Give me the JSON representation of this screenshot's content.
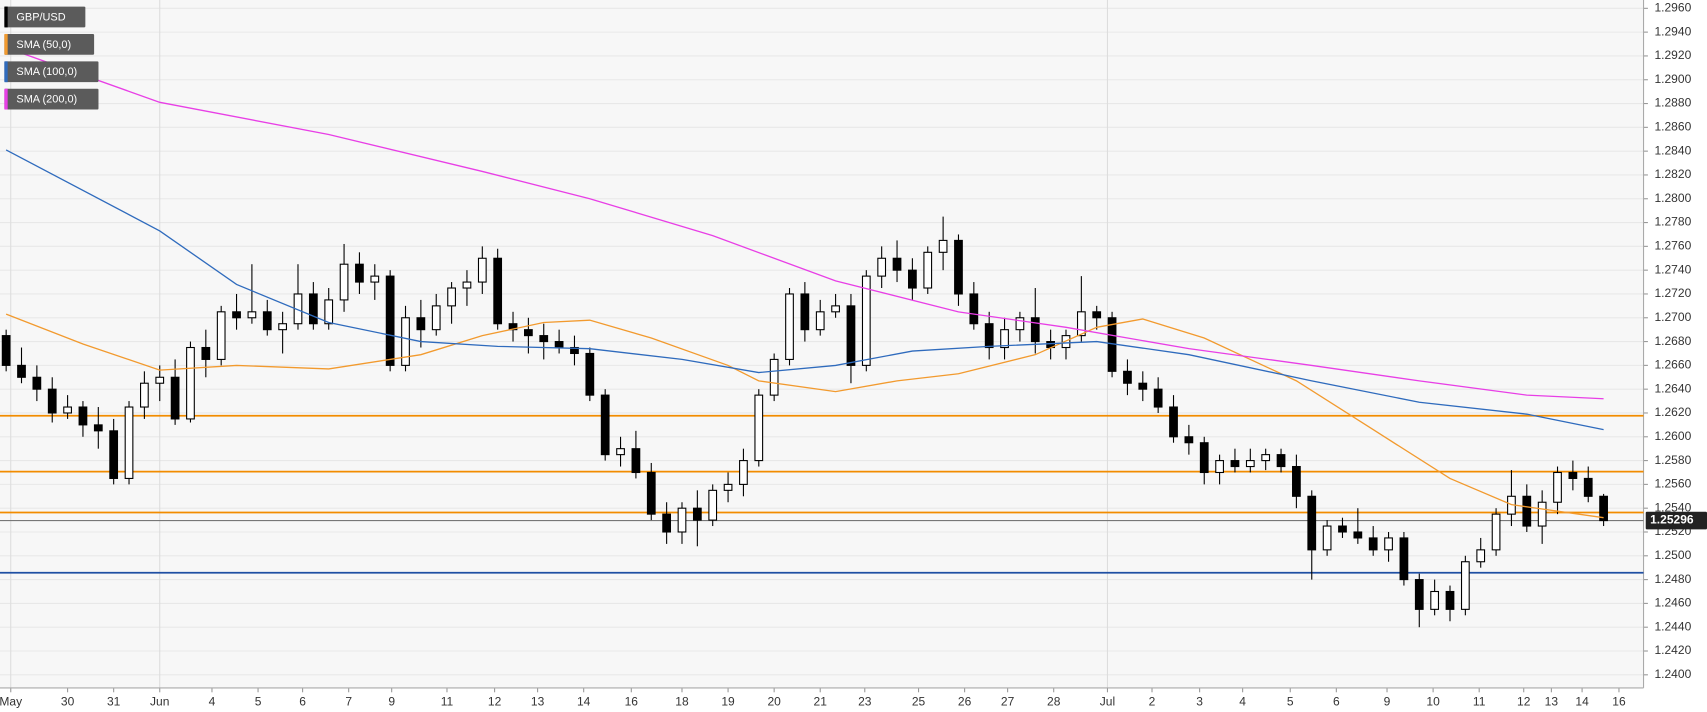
{
  "chart_data": {
    "type": "candlestick",
    "series": [
      {
        "name": "GBP/USD",
        "color": "#000000",
        "x": [
          0,
          1,
          2,
          3,
          4,
          5,
          6,
          7,
          8,
          9,
          10,
          11,
          12,
          13,
          14,
          15,
          16,
          17,
          18,
          19,
          20,
          21,
          22,
          23,
          24,
          25,
          26,
          27,
          28,
          29,
          30,
          31,
          32,
          33,
          34,
          35,
          36,
          37,
          38,
          39,
          40,
          41,
          42,
          43,
          44,
          45,
          46,
          47,
          48,
          49,
          50,
          51,
          52,
          53,
          54,
          55,
          56,
          57,
          58,
          59,
          60,
          61,
          62,
          63,
          64,
          65,
          66,
          67,
          68,
          69,
          70,
          71,
          72,
          73,
          74,
          75,
          76,
          77,
          78,
          79,
          80,
          81,
          82,
          83,
          84,
          85,
          86,
          87,
          88,
          89,
          90,
          91,
          92,
          93,
          94,
          95,
          96,
          97,
          98,
          99,
          100,
          101,
          102,
          103,
          104
        ],
        "open": [
          1.2685,
          1.266,
          1.265,
          1.264,
          1.262,
          1.2625,
          1.261,
          1.2605,
          1.2565,
          1.2625,
          1.2645,
          1.265,
          1.2615,
          1.2675,
          1.2665,
          1.2705,
          1.27,
          1.2705,
          1.269,
          1.2695,
          1.272,
          1.2695,
          1.2715,
          1.2745,
          1.273,
          1.2735,
          1.266,
          1.27,
          1.269,
          1.271,
          1.2725,
          1.273,
          1.275,
          1.2695,
          1.269,
          1.2685,
          1.268,
          1.2675,
          1.267,
          1.2635,
          1.2585,
          1.259,
          1.257,
          1.2535,
          1.252,
          1.254,
          1.253,
          1.2555,
          1.256,
          1.258,
          1.2635,
          1.2665,
          1.272,
          1.269,
          1.2705,
          1.271,
          1.266,
          1.2735,
          1.275,
          1.274,
          1.2725,
          1.2755,
          1.2765,
          1.272,
          1.2695,
          1.2675,
          1.269,
          1.27,
          1.268,
          1.2675,
          1.2685,
          1.2705,
          1.27,
          1.2655,
          1.2645,
          1.264,
          1.2625,
          1.26,
          1.2595,
          1.257,
          1.258,
          1.2575,
          1.258,
          1.2585,
          1.2575,
          1.255,
          1.2505,
          1.2525,
          1.252,
          1.2515,
          1.2505,
          1.2515,
          1.248,
          1.2455,
          1.247,
          1.2455,
          1.2495,
          1.2505,
          1.2535,
          1.255,
          1.2525,
          1.2545,
          1.257,
          1.2565,
          1.255
        ],
        "high": [
          1.269,
          1.2675,
          1.266,
          1.265,
          1.2635,
          1.263,
          1.2625,
          1.2615,
          1.263,
          1.2655,
          1.266,
          1.2665,
          1.268,
          1.269,
          1.271,
          1.272,
          1.2745,
          1.2715,
          1.2705,
          1.2745,
          1.273,
          1.2725,
          1.2762,
          1.2755,
          1.2745,
          1.274,
          1.271,
          1.2715,
          1.272,
          1.273,
          1.274,
          1.276,
          1.2758,
          1.2705,
          1.27,
          1.2695,
          1.269,
          1.2685,
          1.2675,
          1.264,
          1.26,
          1.2605,
          1.2578,
          1.2545,
          1.2545,
          1.2555,
          1.256,
          1.257,
          1.259,
          1.264,
          1.267,
          1.2725,
          1.273,
          1.2715,
          1.272,
          1.272,
          1.274,
          1.276,
          1.2765,
          1.275,
          1.276,
          1.2785,
          1.277,
          1.273,
          1.2705,
          1.27,
          1.2705,
          1.2725,
          1.269,
          1.269,
          1.2735,
          1.271,
          1.2705,
          1.2665,
          1.2655,
          1.265,
          1.2635,
          1.261,
          1.26,
          1.2585,
          1.259,
          1.259,
          1.259,
          1.259,
          1.2585,
          1.2555,
          1.253,
          1.2532,
          1.254,
          1.2525,
          1.252,
          1.252,
          1.2485,
          1.248,
          1.2475,
          1.25,
          1.2515,
          1.254,
          1.2572,
          1.256,
          1.2555,
          1.2575,
          1.258,
          1.2575,
          1.2552
        ],
        "low": [
          1.2655,
          1.2645,
          1.263,
          1.2612,
          1.2615,
          1.26,
          1.259,
          1.256,
          1.256,
          1.2615,
          1.263,
          1.261,
          1.2612,
          1.265,
          1.266,
          1.269,
          1.2695,
          1.2685,
          1.267,
          1.269,
          1.269,
          1.269,
          1.2705,
          1.272,
          1.2715,
          1.2655,
          1.2655,
          1.2675,
          1.2685,
          1.2695,
          1.271,
          1.272,
          1.269,
          1.268,
          1.267,
          1.2665,
          1.267,
          1.266,
          1.263,
          1.258,
          1.2575,
          1.2565,
          1.253,
          1.251,
          1.251,
          1.2508,
          1.2525,
          1.2545,
          1.255,
          1.2575,
          1.263,
          1.266,
          1.268,
          1.2685,
          1.27,
          1.2645,
          1.2655,
          1.2725,
          1.273,
          1.2715,
          1.272,
          1.274,
          1.271,
          1.269,
          1.2665,
          1.2665,
          1.268,
          1.267,
          1.2665,
          1.2665,
          1.268,
          1.269,
          1.265,
          1.2635,
          1.263,
          1.262,
          1.2595,
          1.2585,
          1.256,
          1.256,
          1.257,
          1.257,
          1.2572,
          1.257,
          1.254,
          1.248,
          1.25,
          1.2515,
          1.251,
          1.25,
          1.2495,
          1.2475,
          1.244,
          1.245,
          1.2445,
          1.245,
          1.249,
          1.25,
          1.2525,
          1.252,
          1.251,
          1.2535,
          1.2555,
          1.2545,
          1.2525
        ],
        "close": [
          1.266,
          1.265,
          1.264,
          1.262,
          1.2625,
          1.261,
          1.2605,
          1.2565,
          1.2625,
          1.2645,
          1.265,
          1.2615,
          1.2675,
          1.2665,
          1.2705,
          1.27,
          1.2705,
          1.269,
          1.2695,
          1.272,
          1.2695,
          1.2715,
          1.2745,
          1.273,
          1.2735,
          1.266,
          1.27,
          1.269,
          1.271,
          1.2725,
          1.273,
          1.275,
          1.2695,
          1.269,
          1.2685,
          1.268,
          1.2675,
          1.267,
          1.2635,
          1.2585,
          1.259,
          1.257,
          1.2535,
          1.252,
          1.254,
          1.253,
          1.2555,
          1.256,
          1.258,
          1.2635,
          1.2665,
          1.272,
          1.269,
          1.2705,
          1.271,
          1.266,
          1.2735,
          1.275,
          1.274,
          1.2725,
          1.2755,
          1.2765,
          1.272,
          1.2695,
          1.2675,
          1.269,
          1.27,
          1.268,
          1.2675,
          1.2685,
          1.2705,
          1.27,
          1.2655,
          1.2645,
          1.264,
          1.2625,
          1.26,
          1.2595,
          1.257,
          1.258,
          1.2575,
          1.258,
          1.2585,
          1.2575,
          1.255,
          1.2505,
          1.2525,
          1.252,
          1.2515,
          1.2505,
          1.2515,
          1.248,
          1.2455,
          1.247,
          1.2455,
          1.2495,
          1.2505,
          1.2535,
          1.255,
          1.2525,
          1.2545,
          1.257,
          1.2565,
          1.255,
          1.25296
        ]
      }
    ],
    "overlays": [
      {
        "name": "SMA (50,0)",
        "color": "#f29a2e",
        "x": [
          0,
          5,
          10,
          15,
          21,
          27,
          31,
          35,
          38,
          42,
          47,
          49,
          54,
          58,
          62,
          67,
          71,
          74,
          78,
          84,
          89,
          94,
          98,
          104
        ],
        "values": [
          1.2703,
          1.2678,
          1.2656,
          1.266,
          1.2657,
          1.2669,
          1.2685,
          1.2696,
          1.2698,
          1.2683,
          1.266,
          1.2647,
          1.2638,
          1.2647,
          1.2653,
          1.2669,
          1.2692,
          1.2699,
          1.2683,
          1.2647,
          1.2606,
          1.2565,
          1.2543,
          1.2532
        ]
      },
      {
        "name": "SMA (100,0)",
        "color": "#2f6bbd",
        "x": [
          0,
          10,
          15,
          21,
          27,
          32,
          38,
          44,
          49,
          54,
          59,
          64,
          71,
          77,
          85,
          92,
          99,
          104
        ],
        "values": [
          1.2841,
          1.2773,
          1.2728,
          1.2696,
          1.268,
          1.2676,
          1.2674,
          1.2665,
          1.2654,
          1.266,
          1.2672,
          1.2676,
          1.268,
          1.2669,
          1.2647,
          1.2629,
          1.2619,
          1.2606
        ]
      },
      {
        "name": "SMA (200,0)",
        "color": "#e83fe6",
        "x": [
          0,
          10,
          21,
          31,
          38,
          46,
          54,
          62,
          69,
          77,
          85,
          92,
          99,
          104
        ],
        "values": [
          1.2927,
          1.2881,
          1.2854,
          1.2823,
          1.28,
          1.2769,
          1.2731,
          1.2705,
          1.2692,
          1.2674,
          1.266,
          1.2647,
          1.2635,
          1.2632
        ]
      }
    ],
    "hlines": [
      {
        "value": 1.26177,
        "color": "#f28c00"
      },
      {
        "value": 1.25707,
        "color": "#f28c00"
      },
      {
        "value": 1.25364,
        "color": "#f28c00"
      },
      {
        "value": 1.24858,
        "color": "#1f4fa3"
      }
    ],
    "last_price": 1.25296,
    "xlim": [
      -0.4,
      106.6
    ],
    "ylim": [
      1.2389,
      1.2967
    ],
    "xticks": [
      {
        "value": 0.3,
        "label": "May"
      },
      {
        "value": 4.0,
        "label": "30"
      },
      {
        "value": 7.0,
        "label": "31"
      },
      {
        "value": 10.0,
        "label": "Jun"
      },
      {
        "value": 13.4,
        "label": "4"
      },
      {
        "value": 16.4,
        "label": "5"
      },
      {
        "value": 19.3,
        "label": "6"
      },
      {
        "value": 22.3,
        "label": "7"
      },
      {
        "value": 25.1,
        "label": "9"
      },
      {
        "value": 28.7,
        "label": "11"
      },
      {
        "value": 31.8,
        "label": "12"
      },
      {
        "value": 34.6,
        "label": "13"
      },
      {
        "value": 37.6,
        "label": "14"
      },
      {
        "value": 40.7,
        "label": "16"
      },
      {
        "value": 44.0,
        "label": "18"
      },
      {
        "value": 47.0,
        "label": "19"
      },
      {
        "value": 50.0,
        "label": "20"
      },
      {
        "value": 53.0,
        "label": "21"
      },
      {
        "value": 55.9,
        "label": "23"
      },
      {
        "value": 59.4,
        "label": "25"
      },
      {
        "value": 62.4,
        "label": "26"
      },
      {
        "value": 65.2,
        "label": "27"
      },
      {
        "value": 68.2,
        "label": "28"
      },
      {
        "value": 71.7,
        "label": "Jul"
      },
      {
        "value": 74.6,
        "label": "2"
      },
      {
        "value": 77.7,
        "label": "3"
      },
      {
        "value": 80.5,
        "label": "4"
      },
      {
        "value": 83.6,
        "label": "5"
      },
      {
        "value": 86.6,
        "label": "6"
      },
      {
        "value": 89.9,
        "label": "9"
      },
      {
        "value": 92.9,
        "label": "10"
      },
      {
        "value": 95.9,
        "label": "11"
      },
      {
        "value": 98.8,
        "label": "12"
      },
      {
        "value": 100.6,
        "label": "13"
      },
      {
        "value": 102.6,
        "label": "14"
      },
      {
        "value": 105.0,
        "label": "16"
      }
    ],
    "yticks": [
      {
        "value": 1.24,
        "label": "1.2400"
      },
      {
        "value": 1.242,
        "label": "1.2420"
      },
      {
        "value": 1.244,
        "label": "1.2440"
      },
      {
        "value": 1.246,
        "label": "1.2460"
      },
      {
        "value": 1.248,
        "label": "1.2480"
      },
      {
        "value": 1.25,
        "label": "1.2500"
      },
      {
        "value": 1.252,
        "label": "1.2520"
      },
      {
        "value": 1.254,
        "label": "1.2540"
      },
      {
        "value": 1.256,
        "label": "1.2560"
      },
      {
        "value": 1.258,
        "label": "1.2580"
      },
      {
        "value": 1.26,
        "label": "1.2600"
      },
      {
        "value": 1.262,
        "label": "1.2620"
      },
      {
        "value": 1.264,
        "label": "1.2640"
      },
      {
        "value": 1.266,
        "label": "1.2660"
      },
      {
        "value": 1.268,
        "label": "1.2680"
      },
      {
        "value": 1.27,
        "label": "1.2700"
      },
      {
        "value": 1.272,
        "label": "1.2720"
      },
      {
        "value": 1.274,
        "label": "1.2740"
      },
      {
        "value": 1.276,
        "label": "1.2760"
      },
      {
        "value": 1.278,
        "label": "1.2780"
      },
      {
        "value": 1.28,
        "label": "1.2800"
      },
      {
        "value": 1.282,
        "label": "1.2820"
      },
      {
        "value": 1.284,
        "label": "1.2840"
      },
      {
        "value": 1.286,
        "label": "1.2860"
      },
      {
        "value": 1.288,
        "label": "1.2880"
      },
      {
        "value": 1.29,
        "label": "1.2900"
      },
      {
        "value": 1.292,
        "label": "1.2920"
      },
      {
        "value": 1.294,
        "label": "1.2940"
      },
      {
        "value": 1.296,
        "label": "1.2960"
      }
    ],
    "grid": true
  }
}
